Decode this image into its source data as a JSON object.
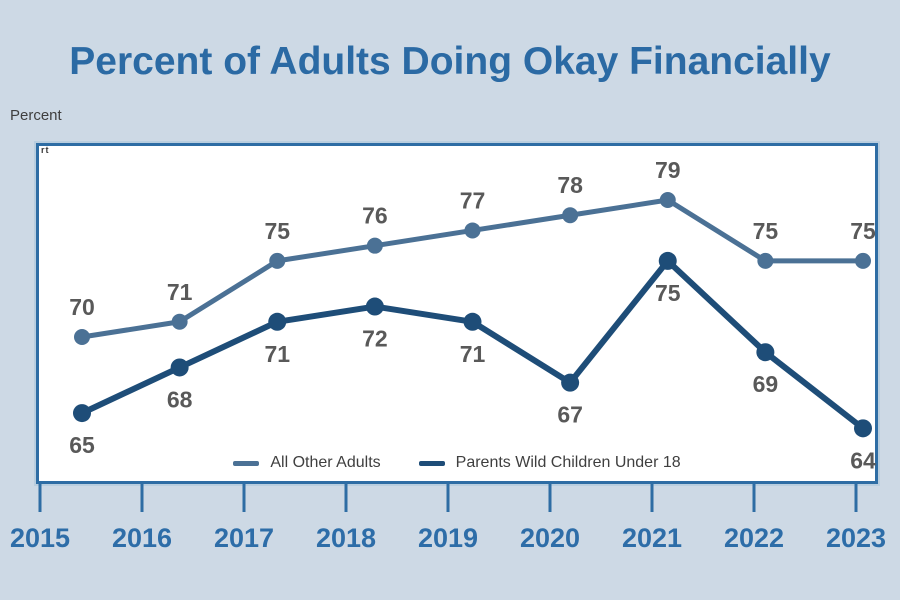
{
  "title": "Percent of Adults Doing Okay Financially",
  "y_axis_label": "Percent",
  "corner_artifact": "rt",
  "colors": {
    "background": "#cdd9e5",
    "title": "#2b6aa4",
    "plot_border": "#2e6da4",
    "axis": "#2e6da4",
    "year_labels": "#2d6da8",
    "data_labels": "#595959",
    "legend_text": "#3f3f3f"
  },
  "chart_data": {
    "type": "line",
    "title": "Percent of Adults Doing Okay Financially",
    "ylabel": "Percent",
    "xlabel": "",
    "categories": [
      "2015",
      "2016",
      "2017",
      "2018",
      "2019",
      "2020",
      "2021",
      "2022",
      "2023"
    ],
    "series": [
      {
        "name": "All Other Adults",
        "color": "#4b7195",
        "values": [
          70,
          71,
          75,
          76,
          77,
          78,
          79,
          75,
          75
        ]
      },
      {
        "name": "Parents Wild Children Under 18",
        "color": "#1e4d78",
        "values": [
          65,
          68,
          71,
          72,
          71,
          67,
          75,
          69,
          64
        ]
      }
    ],
    "ylim": [
      60,
      83
    ],
    "grid": false,
    "data_labels": true,
    "legend_position": "bottom-inside",
    "axis_color": "#2e6da4",
    "data_label_color": "#595959",
    "tick_label_color": "#2d6da8"
  }
}
